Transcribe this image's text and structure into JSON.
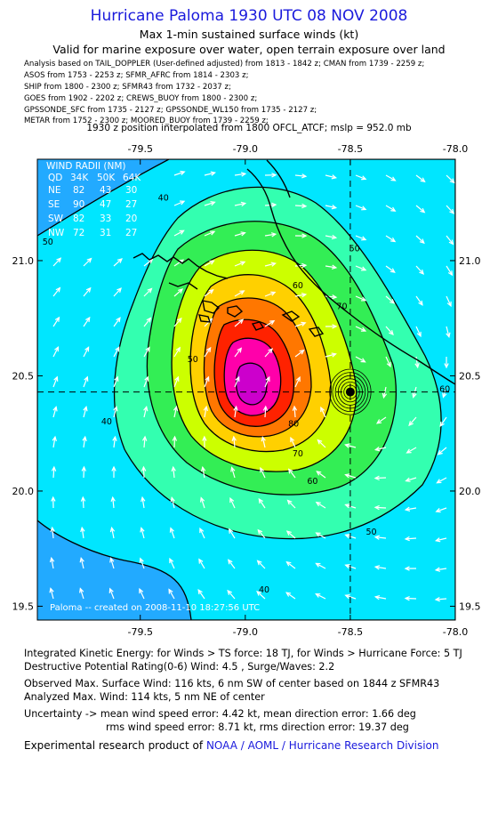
{
  "header": {
    "title": "Hurricane Paloma 1930 UTC 08 NOV 2008",
    "subtitle1": "Max 1-min sustained surface winds (kt)",
    "subtitle2": "Valid for marine exposure over water, open terrain exposure over land"
  },
  "analysis_lines": [
    "Analysis based on  TAIL_DOPPLER (User-defined adjusted) from 1813 - 1842 z;  CMAN from 1739 - 2259 z;",
    "ASOS from 1753 - 2253 z;  SFMR_AFRC from 1814 - 2303 z;",
    "SHIP from 1800 - 2300 z;  SFMR43 from 1732 - 2037 z;",
    "GOES from 1902 - 2202 z;  CREWS_BUOY from 1800 - 2300 z;",
    "GPSSONDE_SFC from 1735 - 2127 z;  GPSSONDE_WL150 from 1735 - 2127 z;",
    "METAR from 1752 - 2300 z;  MOORED_BUOY from 1739 - 2259 z;"
  ],
  "interp_line": "1930 z position interpolated from 1800 OFCL_ATCF; mslp = 952.0 mb",
  "map": {
    "lon_ticks": [
      "-79.5",
      "-79.0",
      "-78.5",
      "-78.0"
    ],
    "lat_ticks": [
      "21.0",
      "20.5",
      "20.0",
      "19.5"
    ],
    "lon_values": [
      -79.5,
      -79.0,
      -78.5,
      -78.0
    ],
    "lat_values": [
      21.0,
      20.5,
      20.0,
      19.5
    ],
    "lon_range": [
      -79.99,
      -78.0
    ],
    "lat_range": [
      19.44,
      21.44
    ],
    "center": {
      "lon": -78.5,
      "lat": 20.43
    },
    "contour_levels": [
      40,
      50,
      60,
      70,
      80,
      90,
      100,
      110
    ],
    "contour_labels": [
      {
        "text": "50",
        "lon": -77.95,
        "lat": 21.36
      },
      {
        "text": "40",
        "lon": -79.39,
        "lat": 21.26
      },
      {
        "text": "50",
        "lon": -79.94,
        "lat": 21.07
      },
      {
        "text": "50",
        "lon": -78.48,
        "lat": 21.04
      },
      {
        "text": "60",
        "lon": -78.75,
        "lat": 20.88
      },
      {
        "text": "70",
        "lon": -78.54,
        "lat": 20.79
      },
      {
        "text": "50",
        "lon": -79.25,
        "lat": 20.56
      },
      {
        "text": "40",
        "lon": -79.66,
        "lat": 20.29
      },
      {
        "text": "60",
        "lon": -78.05,
        "lat": 20.43
      },
      {
        "text": "50",
        "lon": -77.82,
        "lat": 20.28
      },
      {
        "text": "80",
        "lon": -78.77,
        "lat": 20.28
      },
      {
        "text": "70",
        "lon": -78.75,
        "lat": 20.15
      },
      {
        "text": "60",
        "lon": -78.68,
        "lat": 20.03
      },
      {
        "text": "50",
        "lon": -78.4,
        "lat": 19.81
      },
      {
        "text": "40",
        "lon": -78.91,
        "lat": 19.56
      }
    ],
    "colors": {
      "c30": "#22aaff",
      "c40": "#00e6ff",
      "c50": "#33ffb0",
      "c60": "#33ee55",
      "c70": "#ccff00",
      "c80": "#ffd000",
      "c90": "#ff7700",
      "c100": "#ff2200",
      "c110": "#ff00aa",
      "c120": "#cc00cc"
    },
    "wind_radii": {
      "title": "WIND RADII (NM)",
      "header": [
        "QD",
        "34K",
        "50K",
        "64K"
      ],
      "rows": [
        [
          "NE",
          "82",
          "43",
          "30"
        ],
        [
          "SE",
          "90",
          "47",
          "27"
        ],
        [
          "SW",
          "82",
          "33",
          "20"
        ],
        [
          "NW",
          "72",
          "31",
          "27"
        ]
      ]
    },
    "created_label": "Paloma -- created on 2008-11-10 18:27:56 UTC"
  },
  "footer": {
    "ike": "Integrated Kinetic Energy:  for Winds > TS force: 18 TJ,  for Winds > Hurricane Force: 5 TJ",
    "dpr": "Destructive Potential Rating(0-6)   Wind: 4.5 , Surge/Waves: 2.2",
    "observed": "Observed Max. Surface Wind: 116 kts, 6 nm SW of center based on 1844 z SFMR43",
    "analyzed": "Analyzed Max. Wind: 114 kts, 5 nm NE of center",
    "uncert1": "Uncertainty -> mean wind speed error: 4.42 kt,   mean direction error: 1.66 deg",
    "uncert2": "rms wind speed error: 8.71 kt,   rms direction error: 19.37 deg",
    "product_prefix": "Experimental research product of",
    "product_org": "NOAA / AOML / Hurricane Research Division"
  }
}
